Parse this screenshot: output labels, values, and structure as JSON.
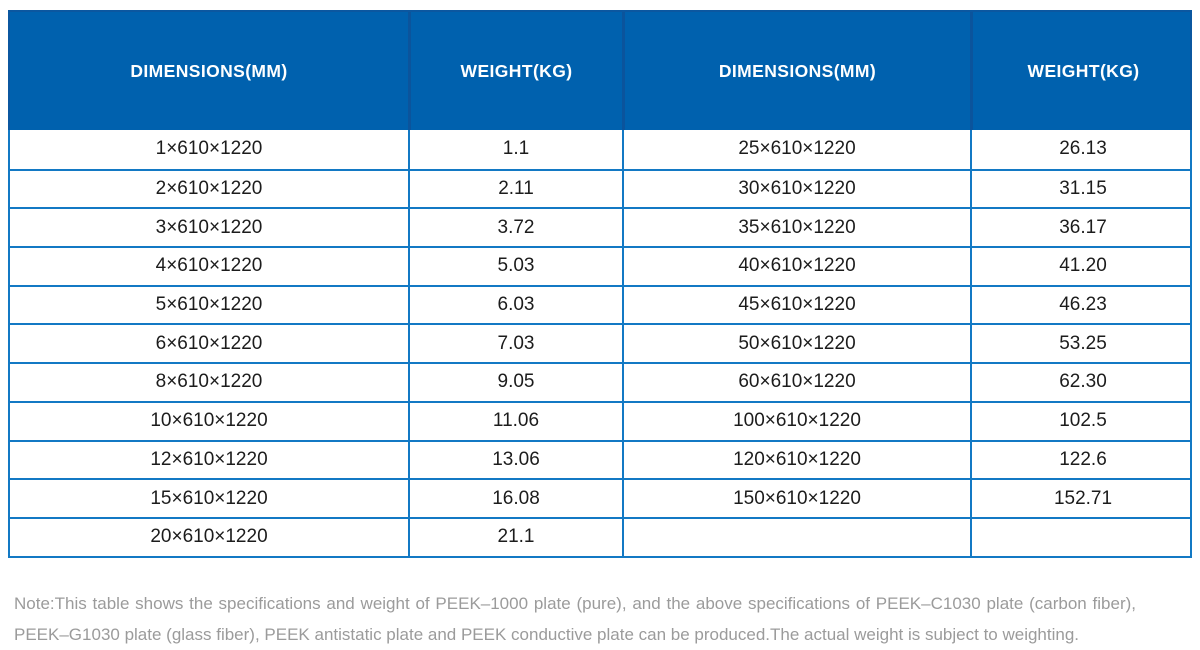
{
  "table": {
    "header": [
      "DIMENSIONS(MM)",
      "WEIGHT(KG)",
      "DIMENSIONS(MM)",
      "WEIGHT(KG)"
    ],
    "rows": [
      [
        "1×610×1220",
        "1.1",
        "25×610×1220",
        "26.13"
      ],
      [
        "2×610×1220",
        "2.11",
        "30×610×1220",
        "31.15"
      ],
      [
        "3×610×1220",
        "3.72",
        "35×610×1220",
        "36.17"
      ],
      [
        "4×610×1220",
        "5.03",
        "40×610×1220",
        "41.20"
      ],
      [
        "5×610×1220",
        "6.03",
        "45×610×1220",
        "46.23"
      ],
      [
        "6×610×1220",
        "7.03",
        "50×610×1220",
        "53.25"
      ],
      [
        "8×610×1220",
        "9.05",
        "60×610×1220",
        "62.30"
      ],
      [
        "10×610×1220",
        "11.06",
        "100×610×1220",
        "102.5"
      ],
      [
        "12×610×1220",
        "13.06",
        "120×610×1220",
        "122.6"
      ],
      [
        "15×610×1220",
        "16.08",
        "150×610×1220",
        "152.71"
      ],
      [
        "20×610×1220",
        "21.1",
        "",
        ""
      ]
    ]
  },
  "note": {
    "line1": "Note:This table shows the specifications and weight of PEEK–1000 plate (pure), and the above specifications of PEEK–C1030 plate (carbon fiber),",
    "line2": "PEEK–G1030 plate (glass fiber), PEEK antistatic plate and PEEK conductive plate can be produced.The actual weight is subject to weighting."
  },
  "colors": {
    "header_bg": "#0061ae",
    "header_divider": "#0b549c",
    "grid_line": "#1379c4",
    "cell_text": "#1c1c1c",
    "note_text": "#9b9b9b"
  }
}
